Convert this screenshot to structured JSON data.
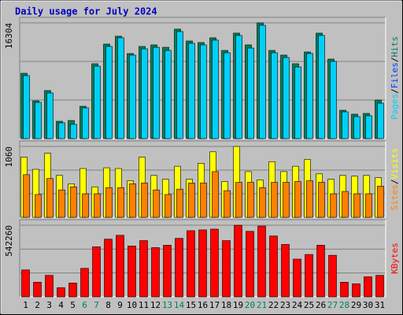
{
  "chart_data": [
    {
      "type": "bar",
      "title": "Daily usage for July 2024",
      "ylim": [
        0,
        16304
      ],
      "yticks": [
        16304
      ],
      "files_label": "Files",
      "files_color": "#0040ff",
      "series": [
        {
          "name": "Hits",
          "color": "#00805c",
          "values": [
            9200,
            5320,
            6770,
            2440,
            2550,
            4550,
            10540,
            13310,
            14420,
            11980,
            12980,
            13200,
            12860,
            15420,
            13750,
            13530,
            14200,
            12420,
            14860,
            13200,
            16304,
            12420,
            11760,
            10540,
            12200,
            14860,
            11200,
            3990,
            3440,
            3550,
            5430
          ]
        },
        {
          "name": "Pages",
          "color": "#00d0f8",
          "values": [
            8870,
            5100,
            6430,
            2220,
            2000,
            4330,
            10200,
            12980,
            14200,
            11760,
            12640,
            12860,
            12420,
            15080,
            13420,
            13200,
            13870,
            12090,
            14530,
            12750,
            15970,
            12090,
            11420,
            10090,
            11980,
            14530,
            10870,
            3770,
            3100,
            3220,
            4990
          ]
        }
      ]
    },
    {
      "type": "bar",
      "ylim": [
        0,
        1060
      ],
      "yticks": [
        1060
      ],
      "series": [
        {
          "name": "Visits",
          "color": "#ffff00",
          "values": [
            900,
            718,
            958,
            627,
            502,
            730,
            456,
            741,
            730,
            547,
            900,
            627,
            570,
            764,
            570,
            809,
            980,
            536,
            1060,
            684,
            559,
            832,
            684,
            764,
            866,
            650,
            570,
            627,
            616,
            627,
            593
          ]
        },
        {
          "name": "Sites",
          "color": "#ff8000",
          "values": [
            638,
            342,
            581,
            410,
            456,
            353,
            353,
            445,
            445,
            502,
            513,
            410,
            342,
            422,
            513,
            513,
            684,
            399,
            524,
            524,
            445,
            524,
            524,
            536,
            547,
            524,
            353,
            388,
            353,
            353,
            467
          ]
        }
      ]
    },
    {
      "type": "bar",
      "ylim": [
        0,
        542260
      ],
      "yticks": [
        542260
      ],
      "categories": [
        "1",
        "2",
        "3",
        "4",
        "5",
        "6",
        "7",
        "8",
        "9",
        "10",
        "11",
        "12",
        "13",
        "14",
        "15",
        "16",
        "17",
        "18",
        "19",
        "20",
        "21",
        "22",
        "23",
        "24",
        "25",
        "26",
        "27",
        "28",
        "29",
        "30",
        "31"
      ],
      "category_colors": [
        "#000",
        "#000",
        "#000",
        "#000",
        "#000",
        "#00805c",
        "#00805c",
        "#000",
        "#000",
        "#000",
        "#000",
        "#000",
        "#00805c",
        "#00805c",
        "#000",
        "#000",
        "#000",
        "#000",
        "#000",
        "#00805c",
        "#00805c",
        "#000",
        "#000",
        "#000",
        "#000",
        "#000",
        "#00805c",
        "#00805c",
        "#000",
        "#000",
        "#000"
      ],
      "series": [
        {
          "name": "KBytes",
          "color": "#ff0000",
          "values": [
            204000,
            111000,
            163000,
            70000,
            105000,
            216000,
            379000,
            437000,
            466000,
            385000,
            426000,
            373000,
            391000,
            443000,
            501000,
            507000,
            513000,
            426000,
            542260,
            496000,
            536000,
            461000,
            397000,
            286000,
            321000,
            391000,
            315000,
            111000,
            99000,
            152000,
            163000
          ]
        }
      ]
    }
  ]
}
